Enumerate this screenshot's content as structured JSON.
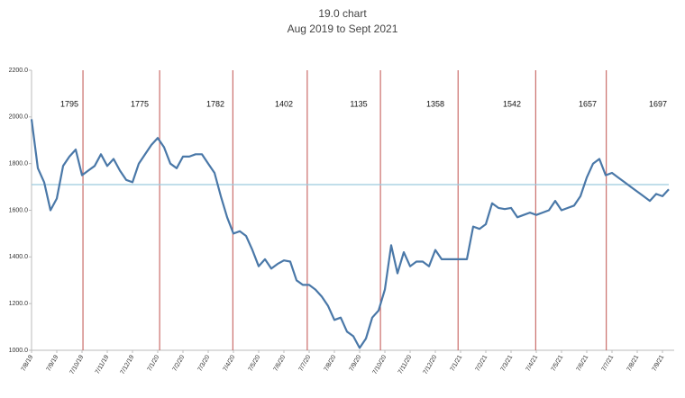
{
  "chart_data": {
    "type": "line",
    "title": "19.0 chart",
    "subtitle": "Aug 2019 to Sept 2021",
    "categories": [
      "7/8/19",
      null,
      null,
      null,
      "7/9/19",
      null,
      null,
      null,
      "7/10/19",
      null,
      null,
      null,
      "7/11/19",
      null,
      null,
      null,
      "7/12/19",
      null,
      null,
      null,
      "7/1/20",
      null,
      null,
      null,
      "7/2/20",
      null,
      null,
      null,
      "7/3/20",
      null,
      null,
      null,
      "7/4/20",
      null,
      null,
      null,
      "7/5/20",
      null,
      null,
      null,
      "7/6/20",
      null,
      null,
      null,
      "7/7/20",
      null,
      null,
      null,
      "7/8/20",
      null,
      null,
      null,
      "7/9/20",
      null,
      null,
      null,
      "7/10/20",
      null,
      null,
      null,
      "7/11/20",
      null,
      null,
      null,
      "7/12/20",
      null,
      null,
      null,
      "7/1/21",
      null,
      null,
      null,
      "7/2/21",
      null,
      null,
      null,
      "7/3/21",
      null,
      null,
      null,
      "7/4/21",
      null,
      null,
      null,
      "7/5/21",
      null,
      null,
      null,
      "7/6/21",
      null,
      null,
      null,
      "7/7/21",
      null,
      null,
      null,
      "7/8/21",
      null,
      null,
      null,
      "7/9/21",
      null
    ],
    "series": [
      {
        "color": "#4a78a8",
        "values": [
          1990,
          1780,
          1720,
          1600,
          1650,
          1790,
          1830,
          1860,
          1750,
          1770,
          1790,
          1840,
          1790,
          1820,
          1770,
          1730,
          1720,
          1800,
          1840,
          1880,
          1910,
          1870,
          1800,
          1780,
          1830,
          1830,
          1840,
          1840,
          1800,
          1760,
          1660,
          1570,
          1500,
          1510,
          1490,
          1430,
          1360,
          1390,
          1350,
          1370,
          1385,
          1380,
          1300,
          1280,
          1280,
          1260,
          1230,
          1190,
          1130,
          1140,
          1080,
          1060,
          1010,
          1050,
          1140,
          1170,
          1260,
          1450,
          1330,
          1420,
          1360,
          1380,
          1380,
          1360,
          1430,
          1390,
          1390,
          1390,
          1390,
          1390,
          1530,
          1520,
          1540,
          1630,
          1610,
          1605,
          1610,
          1570,
          1580,
          1590,
          1580,
          1590,
          1600,
          1640,
          1600,
          1610,
          1620,
          1660,
          1740,
          1800,
          1820,
          1750,
          1760,
          1740,
          1720,
          1700,
          1680,
          1660,
          1640,
          1670,
          1660,
          1690
        ]
      }
    ],
    "ylim": [
      1000,
      2200
    ],
    "yticks": [
      {
        "value": 1000,
        "label": "1000.0"
      },
      {
        "value": 1200,
        "label": "1200.0"
      },
      {
        "value": 1400,
        "label": "1400.0"
      },
      {
        "value": 1600,
        "label": "1600.0"
      },
      {
        "value": 1800,
        "label": "1800.0"
      },
      {
        "value": 2000,
        "label": "2000.0"
      },
      {
        "value": 2200,
        "label": "2200.0"
      }
    ],
    "reference_line": 1710,
    "reference_color": "#9cc9de",
    "divider_color": "#c0504d",
    "annotations": [
      1795,
      1775,
      1782,
      1402,
      1135,
      1358,
      1542,
      1657,
      1697
    ],
    "grid": false
  }
}
